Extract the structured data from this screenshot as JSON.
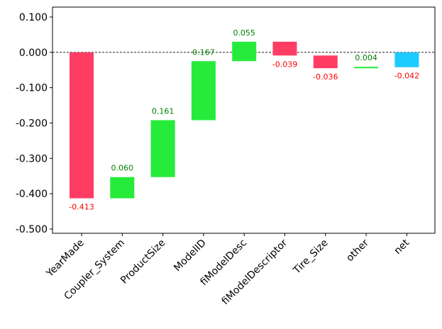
{
  "chart_data": {
    "type": "bar",
    "subtype": "waterfall",
    "title": "",
    "xlabel": "",
    "ylabel": "",
    "ylim": [
      -0.512,
      0.128
    ],
    "y_ticks": [
      0.1,
      0.0,
      -0.1,
      -0.2,
      -0.3,
      -0.4,
      -0.5
    ],
    "y_tick_labels": [
      "0.100",
      "0.000",
      "-0.100",
      "-0.200",
      "-0.300",
      "-0.400",
      "-0.500"
    ],
    "zero_line": {
      "value": 0.0,
      "style": "dashed"
    },
    "grid": false,
    "legend": "none",
    "colors": {
      "positive": "#26eb3a",
      "negative": "#ff3d63",
      "net": "#1ccbff"
    },
    "categories": [
      "YearMade",
      "Coupler_System",
      "ProductSize",
      "ModelID",
      "fiModelDesc",
      "fiModelDescriptor",
      "Tire_Size",
      "other",
      "net"
    ],
    "values": [
      -0.413,
      0.06,
      0.161,
      0.167,
      0.055,
      -0.039,
      -0.036,
      0.004,
      -0.042
    ],
    "value_labels": [
      "-0.413",
      "0.060",
      "0.161",
      "0.167",
      "0.055",
      "-0.039",
      "-0.036",
      "0.004",
      "-0.042"
    ],
    "bars": [
      {
        "category": "YearMade",
        "start": 0.0,
        "end": -0.413,
        "kind": "negative"
      },
      {
        "category": "Coupler_System",
        "start": -0.413,
        "end": -0.353,
        "kind": "positive"
      },
      {
        "category": "ProductSize",
        "start": -0.353,
        "end": -0.192,
        "kind": "positive"
      },
      {
        "category": "ModelID",
        "start": -0.192,
        "end": -0.025,
        "kind": "positive"
      },
      {
        "category": "fiModelDesc",
        "start": -0.025,
        "end": 0.03,
        "kind": "positive"
      },
      {
        "category": "fiModelDescriptor",
        "start": 0.03,
        "end": -0.009,
        "kind": "negative"
      },
      {
        "category": "Tire_Size",
        "start": -0.009,
        "end": -0.045,
        "kind": "negative"
      },
      {
        "category": "other",
        "start": -0.045,
        "end": -0.041,
        "kind": "positive"
      },
      {
        "category": "net",
        "start": 0.0,
        "end": -0.042,
        "kind": "net"
      }
    ]
  }
}
